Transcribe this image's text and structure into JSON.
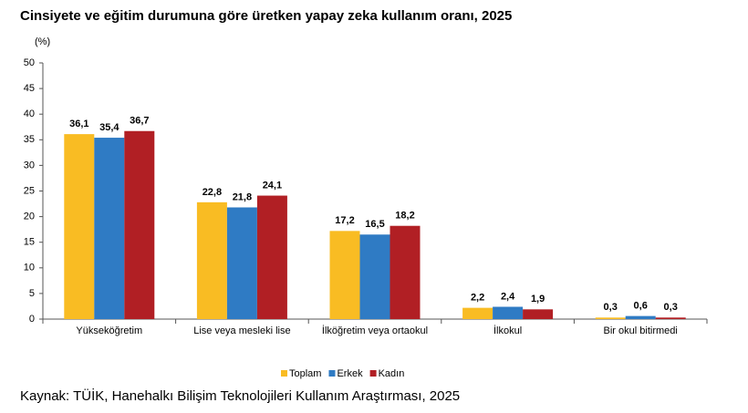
{
  "chart_data": {
    "type": "bar",
    "title": "Cinsiyete ve eğitim durumuna göre üretken yapay zeka kullanım oranı, 2025",
    "y_label": "(%)",
    "categories": [
      "Yükseköğretim",
      "Lise veya mesleki lise",
      "İlköğretim veya ortaokul",
      "İlkokul",
      "Bir okul bitirmedi"
    ],
    "series": [
      {
        "name": "Toplam",
        "color": "#f9bc23",
        "values": [
          36.1,
          22.8,
          17.2,
          2.2,
          0.3
        ],
        "value_labels": [
          "36,1",
          "22,8",
          "17,2",
          "2,2",
          "0,3"
        ]
      },
      {
        "name": "Erkek",
        "color": "#2f7bc4",
        "values": [
          35.4,
          21.8,
          16.5,
          2.4,
          0.6
        ],
        "value_labels": [
          "35,4",
          "21,8",
          "16,5",
          "2,4",
          "0,6"
        ]
      },
      {
        "name": "Kadın",
        "color": "#b11f24",
        "values": [
          36.7,
          24.1,
          18.2,
          1.9,
          0.3
        ],
        "value_labels": [
          "36,7",
          "24,1",
          "18,2",
          "1,9",
          "0,3"
        ]
      }
    ],
    "ylim": [
      0,
      50
    ],
    "yticks": [
      0,
      5,
      10,
      15,
      20,
      25,
      30,
      35,
      40,
      45,
      50
    ],
    "grid": false,
    "legend": "bottom",
    "source": "Kaynak: TÜİK, Hanehalkı Bilişim Teknolojileri Kullanım Araştırması, 2025"
  }
}
